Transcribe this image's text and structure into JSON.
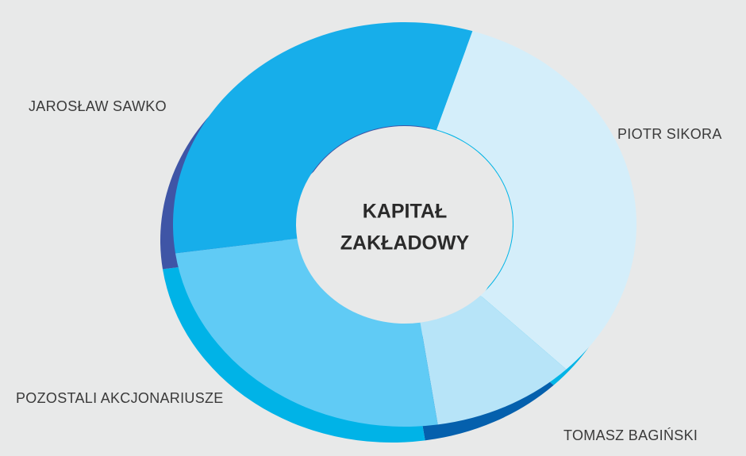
{
  "chart_data": {
    "type": "donut",
    "title_lines": [
      "KAPITAŁ",
      "ZAKŁADOWY"
    ],
    "categories": [
      "PIOTR SIKORA",
      "TOMASZ BAGIŃSKI",
      "POZOSTALI AKCJONARIUSZE",
      "JAROSŁAW SAWKO"
    ],
    "values": [
      33,
      10,
      25,
      32
    ],
    "colors": [
      "#d4eefa",
      "#b7e4f8",
      "#60cbf5",
      "#17aeea"
    ],
    "side_colors": [
      "#00b4e6",
      "#0560ad",
      "#00b3e7",
      "#3f55a6"
    ]
  }
}
